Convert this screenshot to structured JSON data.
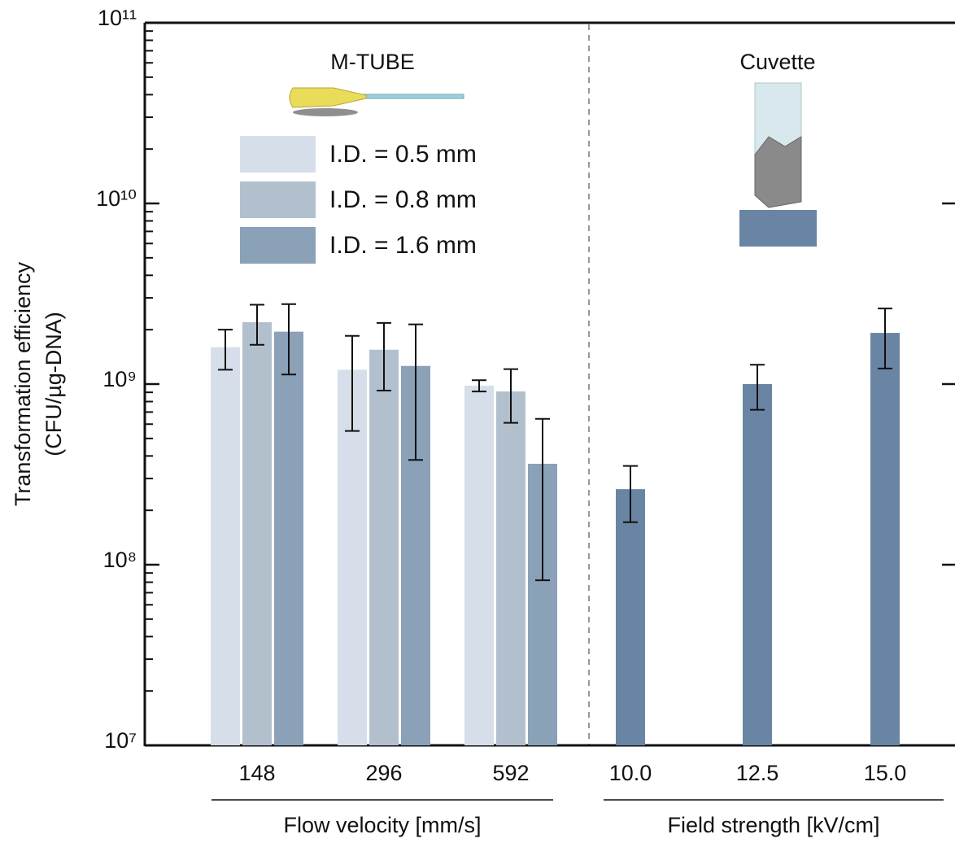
{
  "chart_data": {
    "type": "bar",
    "y_label": [
      "Transformation efficiency",
      "(CFU/µg-DNA)"
    ],
    "annotations": [
      "M-TUBE",
      "Cuvette"
    ],
    "group_labels": [
      "Flow velocity [mm/s]",
      "Field strength [kV/cm]"
    ],
    "categories": [
      "148",
      "296",
      "592",
      "10.0",
      "12.5",
      "15.0"
    ],
    "series": [
      {
        "name": "I.D. = 0.5 mm",
        "color": "#d6dfe9",
        "values": [
          1600000000,
          1200000000,
          980000000,
          null,
          null,
          null
        ],
        "errors": [
          400000000,
          650000000,
          70000000,
          null,
          null,
          null
        ]
      },
      {
        "name": "I.D. = 0.8 mm",
        "color": "#b2c0ce",
        "values": [
          2200000000,
          1550000000,
          910000000,
          null,
          null,
          null
        ],
        "errors": [
          550000000,
          630000000,
          300000000,
          null,
          null,
          null
        ]
      },
      {
        "name": "I.D. = 1.6 mm",
        "color": "#8aa1b7",
        "values": [
          1950000000,
          1260000000,
          362000000,
          null,
          null,
          null
        ],
        "errors": [
          820000000,
          880000000,
          280000000,
          null,
          null,
          null
        ]
      },
      {
        "name": "Cuvette",
        "color": "#6a85a3",
        "values": [
          null,
          null,
          null,
          262000000,
          1000000000,
          1920000000
        ],
        "errors": [
          null,
          null,
          null,
          90000000,
          280000000,
          700000000
        ]
      }
    ],
    "log_y": true,
    "ylim": [
      10000000,
      100000000000
    ],
    "yticks": [
      {
        "value": 10000000,
        "label": "10⁷"
      },
      {
        "value": 100000000,
        "label": "10⁸"
      },
      {
        "value": 1000000000,
        "label": "10⁹"
      },
      {
        "value": 10000000000,
        "label": "10¹⁰"
      },
      {
        "value": 100000000000,
        "label": "10¹¹"
      }
    ]
  }
}
